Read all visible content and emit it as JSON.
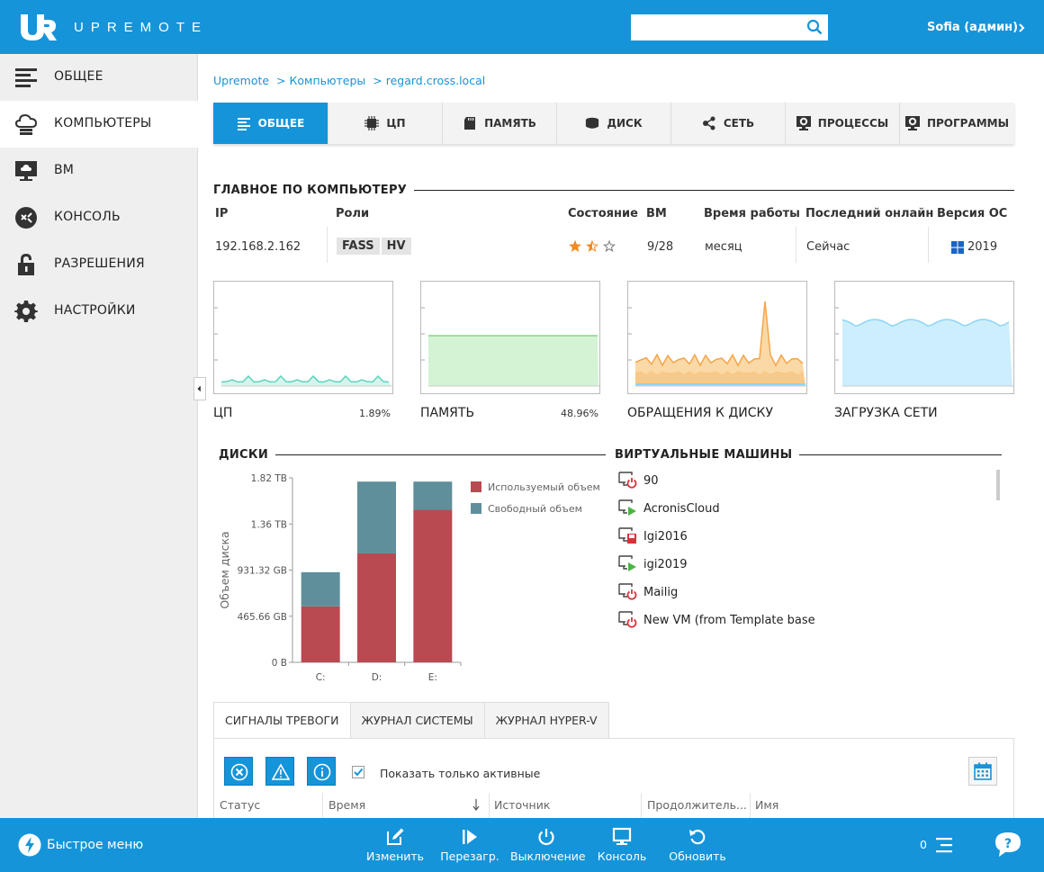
{
  "header": {
    "brand": "UPREMOTE",
    "search": {
      "value": "",
      "placeholder": ""
    },
    "user": "Sofia (админ)"
  },
  "sidebar": {
    "items": [
      {
        "label": "ОБЩЕЕ",
        "icon": "list-icon",
        "active": false
      },
      {
        "label": "КОМПЬЮТЕРЫ",
        "icon": "computers-icon",
        "active": true
      },
      {
        "label": "ВМ",
        "icon": "vm-monitor-icon",
        "active": false
      },
      {
        "label": "КОНСОЛЬ",
        "icon": "console-icon",
        "active": false
      },
      {
        "label": "РАЗРЕШЕНИЯ",
        "icon": "lock-icon",
        "active": false
      },
      {
        "label": "НАСТРОЙКИ",
        "icon": "gear-icon",
        "active": false
      }
    ]
  },
  "breadcrumb": [
    "Upremote",
    "> Компьютеры",
    "> regard.cross.local"
  ],
  "tabs": [
    {
      "label": "ОБЩЕЕ",
      "icon": "list-icon",
      "active": true
    },
    {
      "label": "ЦП",
      "icon": "cpu-icon",
      "active": false
    },
    {
      "label": "ПАМЯТЬ",
      "icon": "memory-icon",
      "active": false
    },
    {
      "label": "ДИСК",
      "icon": "disk-icon",
      "active": false
    },
    {
      "label": "СЕТЬ",
      "icon": "network-icon",
      "active": false
    },
    {
      "label": "ПРОЦЕССЫ",
      "icon": "processes-icon",
      "active": false
    },
    {
      "label": "ПРОГРАММЫ",
      "icon": "programs-icon",
      "active": false
    }
  ],
  "summary": {
    "title": "ГЛАВНОЕ ПО КОМПЬЮТЕРУ",
    "headers": {
      "ip": "IP",
      "roles": "Роли",
      "state": "Состояние",
      "vm": "ВМ",
      "uptime": "Время работы",
      "last_online": "Последний онлайн",
      "os": "Версия ОС"
    },
    "ip": "192.168.2.162",
    "roles": [
      "FASS",
      "HV"
    ],
    "rating": 1.5,
    "rating_max": 3,
    "vm": "9/28",
    "uptime": "месяц",
    "last_online": "Сейчас",
    "os": "2019",
    "colors": {
      "star": "#f08a24",
      "accent": "#1694d9"
    }
  },
  "mini_charts": [
    {
      "label": "ЦП",
      "value": "1.89%",
      "color": "#7fdcc8"
    },
    {
      "label": "ПАМЯТЬ",
      "value": "48.96%",
      "color": "#9de29f"
    },
    {
      "label": "ОБРАЩЕНИЯ К ДИСКУ",
      "value": "",
      "color": "#f5b35c"
    },
    {
      "label": "ЗАГРУЗКА СЕТИ",
      "value": "",
      "color": "#8fd4f5"
    }
  ],
  "disks": {
    "title": "ДИСКИ",
    "chart_data": {
      "type": "bar",
      "stacked": true,
      "categories": [
        "C:",
        "D:",
        "E:"
      ],
      "series": [
        {
          "name": "Используемый объем",
          "color": "#b94a51",
          "values": [
            565,
            1100,
            1540
          ]
        },
        {
          "name": "Свободный объем",
          "color": "#5f8f9a",
          "values": [
            345,
            725,
            285
          ]
        }
      ],
      "ylabel": "Объем диска",
      "y_ticks": [
        {
          "value": 0,
          "label": "0 B"
        },
        {
          "value": 465.66,
          "label": "465.66 GB"
        },
        {
          "value": 931.32,
          "label": "931.32 GB"
        },
        {
          "value": 1397,
          "label": "1.36 TB"
        },
        {
          "value": 1863,
          "label": "1.82 TB"
        }
      ],
      "ylim": [
        0,
        1863
      ],
      "legend": "right"
    }
  },
  "vms": {
    "title": "ВИРТУАЛЬНЫЕ МАШИНЫ",
    "items": [
      {
        "name": "90",
        "status": "off"
      },
      {
        "name": "AcronisCloud",
        "status": "running"
      },
      {
        "name": "Igi2016",
        "status": "saved"
      },
      {
        "name": "igi2019",
        "status": "running"
      },
      {
        "name": "Mailig",
        "status": "off"
      },
      {
        "name": "New VM (from Template base",
        "status": "off"
      }
    ]
  },
  "log": {
    "tabs": [
      "СИГНАЛЫ ТРЕВОГИ",
      "ЖУРНАЛ СИСТЕМЫ",
      "ЖУРНАЛ HYPER-V"
    ],
    "show_active_label": "Показать только активные",
    "show_active_checked": true,
    "columns": [
      "Статус",
      "Время",
      "Источник",
      "Продолжитель...",
      "Имя"
    ]
  },
  "footer": {
    "quick_menu": "Быстрое меню",
    "actions": [
      "Изменить",
      "Перезагр.",
      "Выключение",
      "Консоль",
      "Обновить"
    ],
    "notifications": "0"
  }
}
